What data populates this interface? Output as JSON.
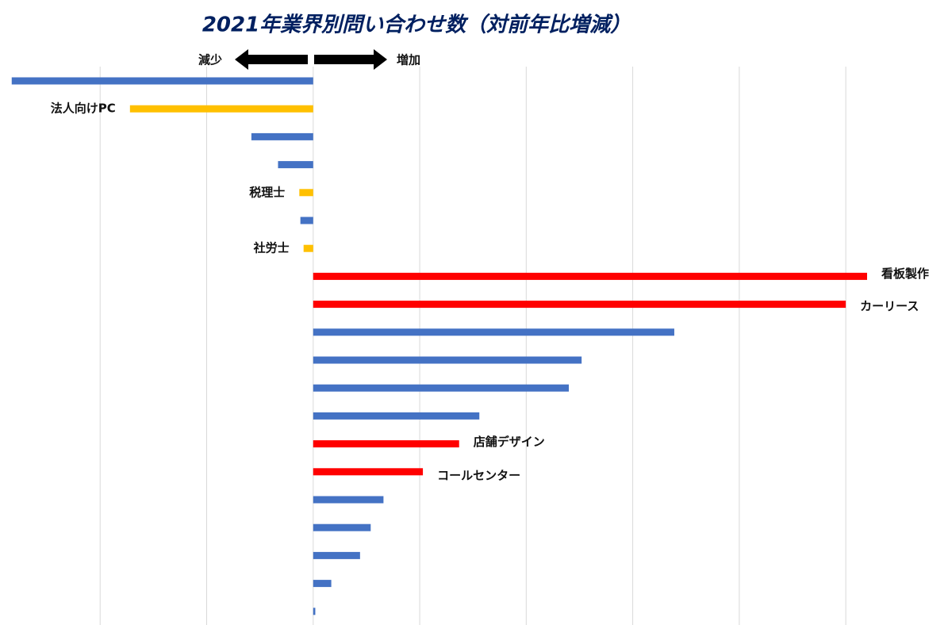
{
  "chart_data": {
    "type": "barh",
    "title": "2021年業界別問い合わせ数（対前年比増減）",
    "annotations": [
      "減少",
      "増加"
    ],
    "categories": [
      null,
      "法人向けPC",
      null,
      null,
      "税理士",
      null,
      "社労士",
      "看板製作",
      "カーリース",
      null,
      null,
      null,
      null,
      "店舗デザイン",
      "コールセンター",
      null,
      null,
      null,
      null,
      null
    ],
    "values": [
      -2.83,
      -1.72,
      -0.58,
      -0.33,
      -0.13,
      -0.12,
      -0.09,
      5.2,
      5.0,
      3.39,
      2.52,
      2.4,
      1.56,
      1.37,
      1.03,
      0.66,
      0.54,
      0.44,
      0.17,
      0.02
    ],
    "colors": [
      "#4472c4",
      "#ffc000",
      "#4472c4",
      "#4472c4",
      "#ffc000",
      "#4472c4",
      "#ffc000",
      "#ff0000",
      "#ff0000",
      "#4472c4",
      "#4472c4",
      "#4472c4",
      "#4472c4",
      "#ff0000",
      "#ff0000",
      "#4472c4",
      "#4472c4",
      "#4472c4",
      "#4472c4",
      "#4472c4"
    ],
    "xlim": [
      -2.94,
      5.9
    ],
    "xticks": [
      -2,
      -1,
      0,
      1,
      2,
      3,
      4,
      5
    ],
    "grid": true
  }
}
